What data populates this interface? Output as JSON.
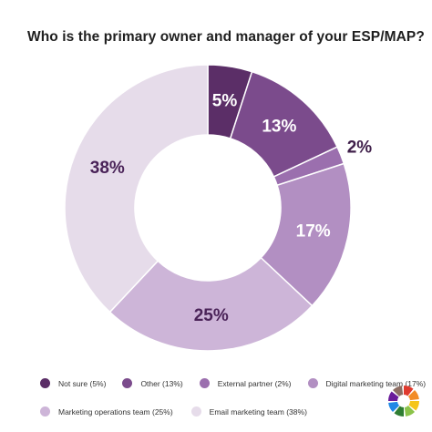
{
  "title": "Who is the primary owner and manager of your ESP/MAP?",
  "chart_data": {
    "type": "donut",
    "title": "Who is the primary owner and manager of your ESP/MAP?",
    "slices": [
      {
        "label": "Not sure (5%)",
        "value": 5,
        "display": "5%",
        "color": "#5b2e67",
        "text_color": "#ffffff"
      },
      {
        "label": "Other (13%)",
        "value": 13,
        "display": "13%",
        "color": "#7b4b8c",
        "text_color": "#ffffff"
      },
      {
        "label": "External partner (2%)",
        "value": 2,
        "display": "2%",
        "color": "#9b6fae",
        "text_color": "#3f1f4a"
      },
      {
        "label": "Digital marketing team (17%)",
        "value": 17,
        "display": "17%",
        "color": "#b28fc2",
        "text_color": "#ffffff"
      },
      {
        "label": "Marketing operations team (25%)",
        "value": 25,
        "display": "25%",
        "color": "#cdb5d8",
        "text_color": "#4a2358"
      },
      {
        "label": "Email marketing team (38%)",
        "value": 38,
        "display": "38%",
        "color": "#e6dcea",
        "text_color": "#4a2358"
      }
    ],
    "legend_placement": "bottom"
  },
  "legend": {
    "row1": [
      "Not sure (5%)",
      "Other (13%)",
      "External partner (2%)",
      "Digital marketing team (17%)"
    ],
    "row2": [
      "Marketing operations team (25%)",
      "Email marketing team (38%)"
    ]
  },
  "logo": {
    "name": "colorwheel-logo-icon",
    "colors": [
      "#e03a2e",
      "#f28c28",
      "#f5c518",
      "#8bc34a",
      "#2e7d32",
      "#1e88e5",
      "#6a1b9a",
      "#8d6e63"
    ]
  }
}
